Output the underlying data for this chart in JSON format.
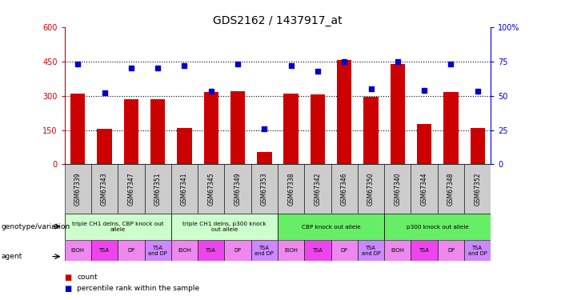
{
  "title": "GDS2162 / 1437917_at",
  "samples": [
    "GSM67339",
    "GSM67343",
    "GSM67347",
    "GSM67351",
    "GSM67341",
    "GSM67345",
    "GSM67349",
    "GSM67353",
    "GSM67338",
    "GSM67342",
    "GSM67346",
    "GSM67350",
    "GSM67340",
    "GSM67344",
    "GSM67348",
    "GSM67352"
  ],
  "counts": [
    310,
    155,
    285,
    285,
    160,
    315,
    320,
    55,
    310,
    305,
    455,
    295,
    440,
    175,
    315,
    160
  ],
  "percentiles": [
    73,
    52,
    70,
    70,
    72,
    53,
    73,
    26,
    72,
    68,
    75,
    55,
    75,
    54,
    73,
    53
  ],
  "ylim_left": [
    0,
    600
  ],
  "ylim_right": [
    0,
    100
  ],
  "yticks_left": [
    0,
    150,
    300,
    450,
    600
  ],
  "yticks_right": [
    0,
    25,
    50,
    75,
    100
  ],
  "bar_color": "#cc0000",
  "dot_color": "#0000cc",
  "genotype_groups": [
    {
      "label": "triple CH1 delns, CBP knock out\nallele",
      "start": 0,
      "end": 4,
      "color": "#ccffcc"
    },
    {
      "label": "triple CH1 delns, p300 knock\nout allele",
      "start": 4,
      "end": 8,
      "color": "#ccffcc"
    },
    {
      "label": "CBP knock out allele",
      "start": 8,
      "end": 12,
      "color": "#66ee66"
    },
    {
      "label": "p300 knock out allele",
      "start": 12,
      "end": 16,
      "color": "#66ee66"
    }
  ],
  "agent_labels": [
    "EtOH",
    "TSA",
    "DP",
    "TSA\nand DP",
    "EtOH",
    "TSA",
    "DP",
    "TSA\nand DP",
    "EtOH",
    "TSA",
    "DP",
    "TSA\nand DP",
    "EtOH",
    "TSA",
    "DP",
    "TSA\nand DP"
  ],
  "title_fontsize": 10,
  "tick_fontsize": 7,
  "sample_fontsize": 5.5,
  "bg_color": "#ffffff",
  "sample_bg": "#cccccc",
  "geno_label": "genotype/variation",
  "agent_label": "agent",
  "legend_count": "count",
  "legend_pct": "percentile rank within the sample"
}
